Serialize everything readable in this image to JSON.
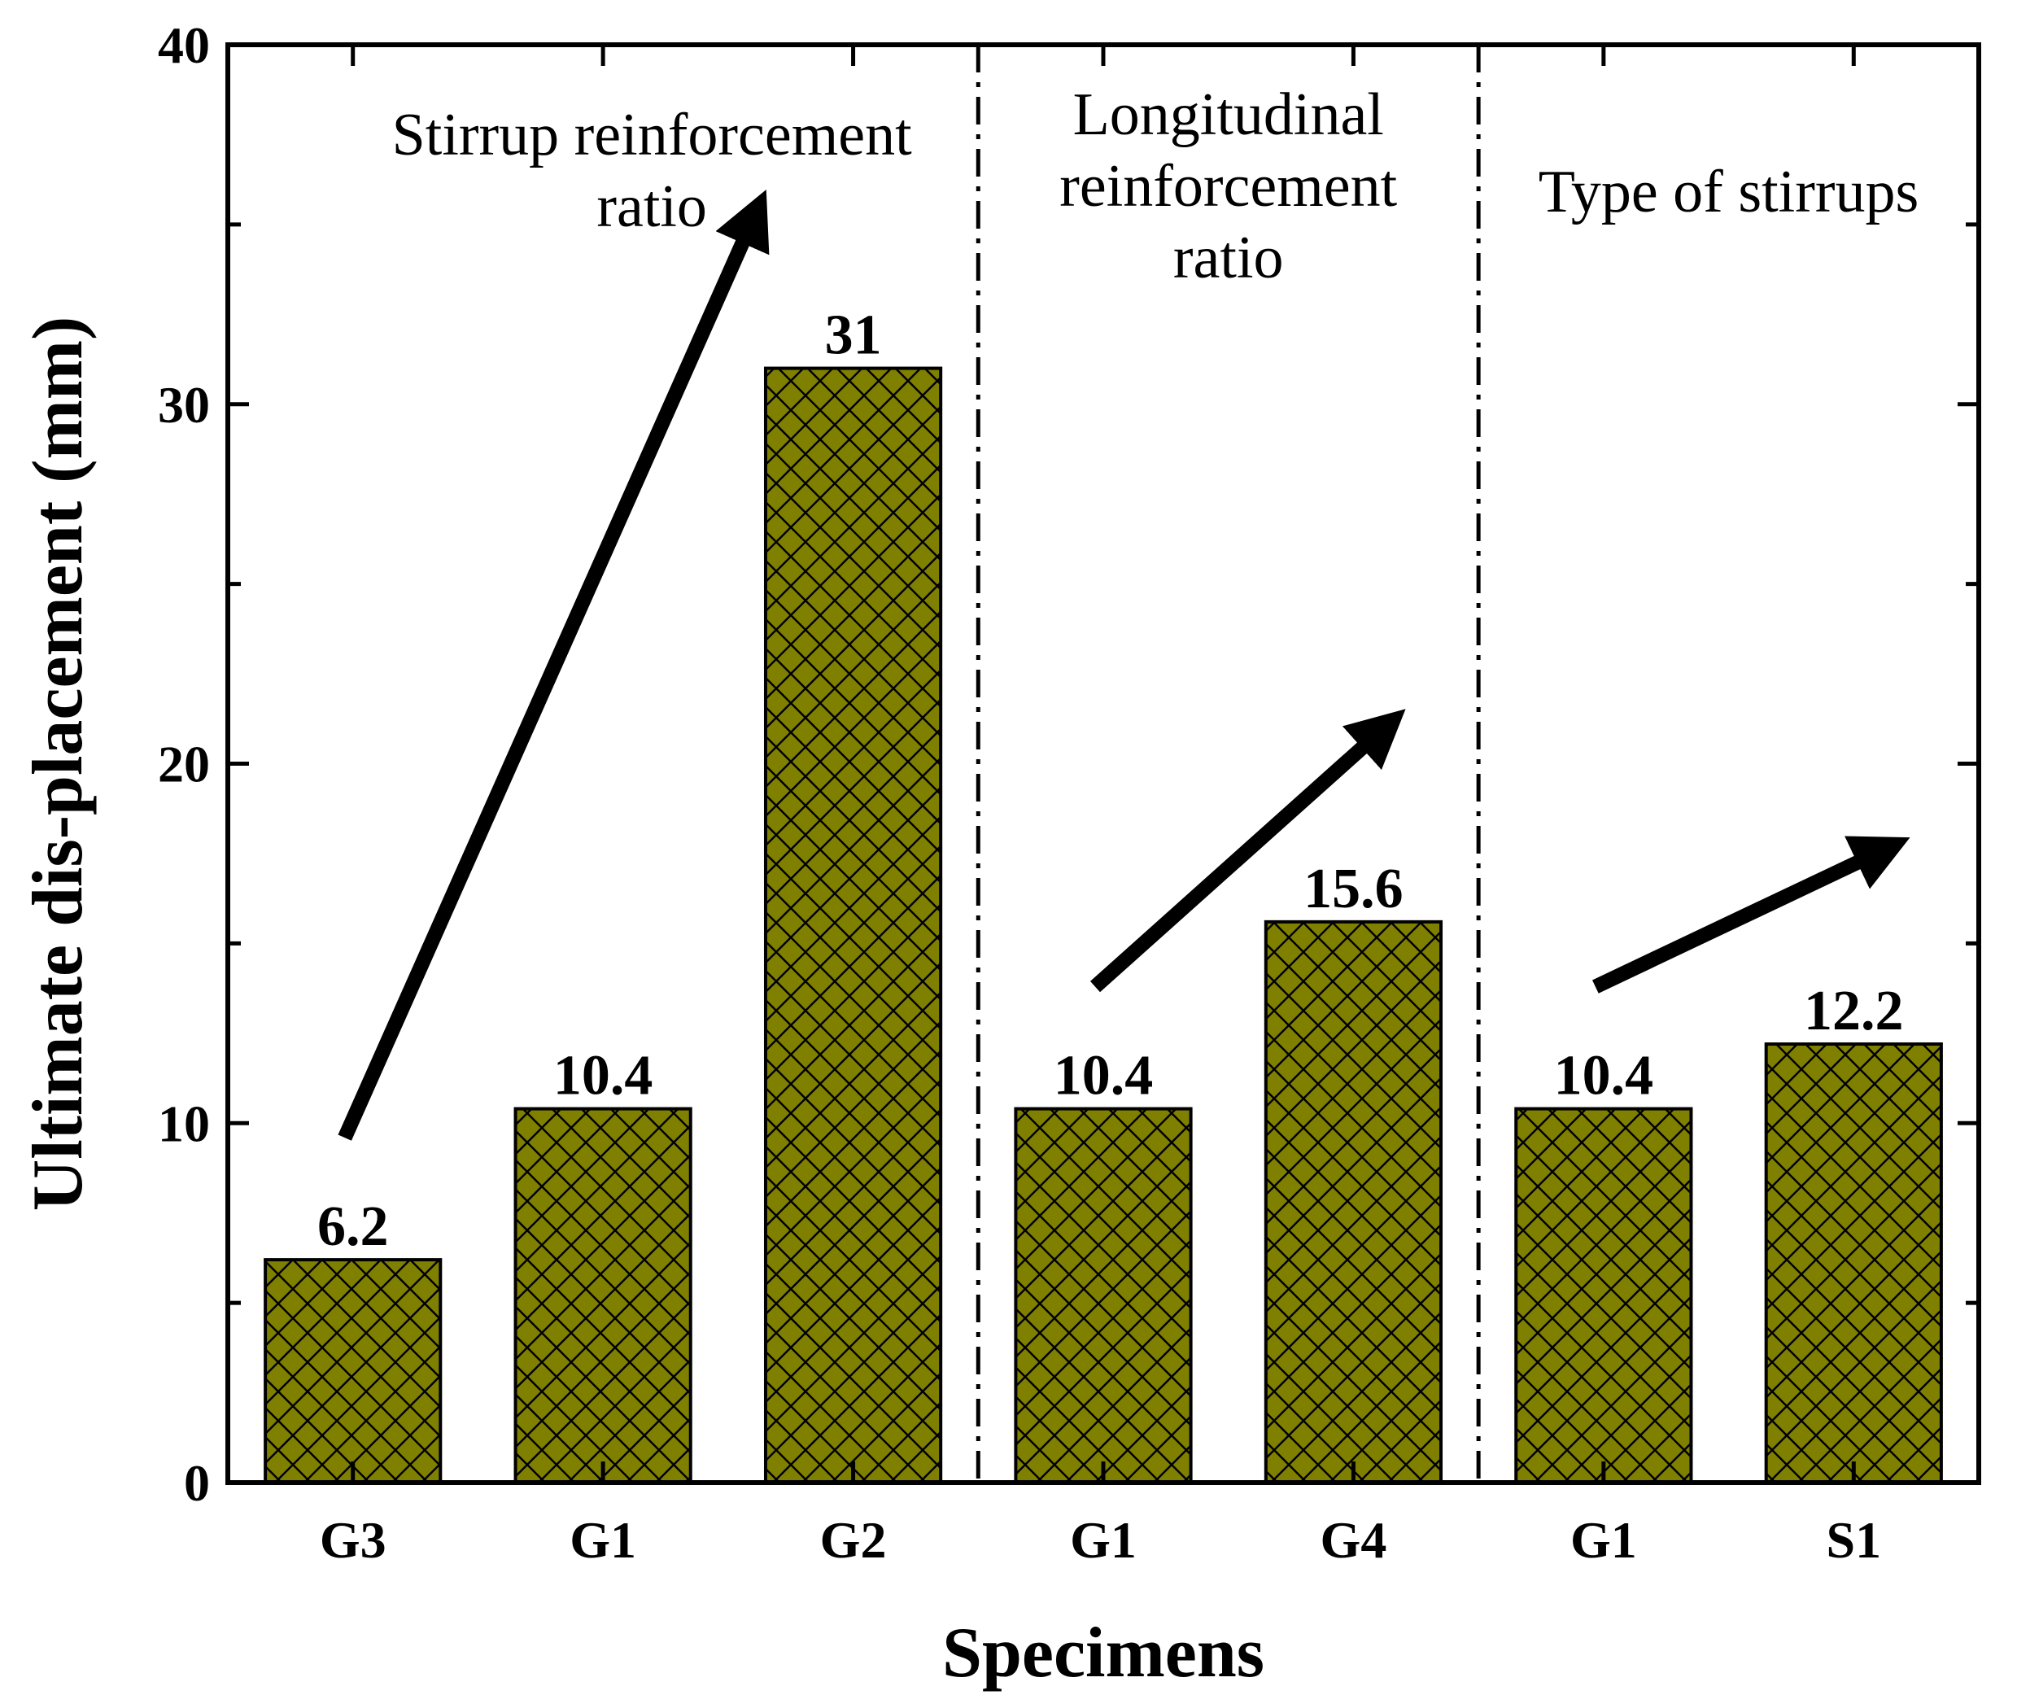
{
  "chart_data": {
    "type": "bar",
    "xlabel": "Specimens",
    "ylabel": "Ultimate dis-placement (mm)",
    "ylim": [
      0,
      40
    ],
    "yticks": [
      0,
      10,
      20,
      30,
      40
    ],
    "categories": [
      "G3",
      "G1",
      "G2",
      "G1",
      "G4",
      "G1",
      "S1"
    ],
    "values": [
      6.2,
      10.4,
      31,
      10.4,
      15.6,
      10.4,
      12.2
    ],
    "value_labels": [
      "6.2",
      "10.4",
      "31",
      "10.4",
      "15.6",
      "10.4",
      "12.2"
    ],
    "bar_color": "#808000",
    "hatch": "crosshatch",
    "grid": false,
    "groups": [
      {
        "lines": [
          "Stirrup reinforcement",
          "ratio"
        ],
        "start": 0,
        "end": 2
      },
      {
        "lines": [
          "Longitudinal",
          "reinforcement",
          "ratio"
        ],
        "start": 3,
        "end": 4
      },
      {
        "lines": [
          "Type of stirrups"
        ],
        "start": 5,
        "end": 6
      }
    ],
    "trend_arrows": [
      {
        "from": 0,
        "to": 2
      },
      {
        "from": 3,
        "to": 4
      },
      {
        "from": 5,
        "to": 6
      }
    ]
  }
}
